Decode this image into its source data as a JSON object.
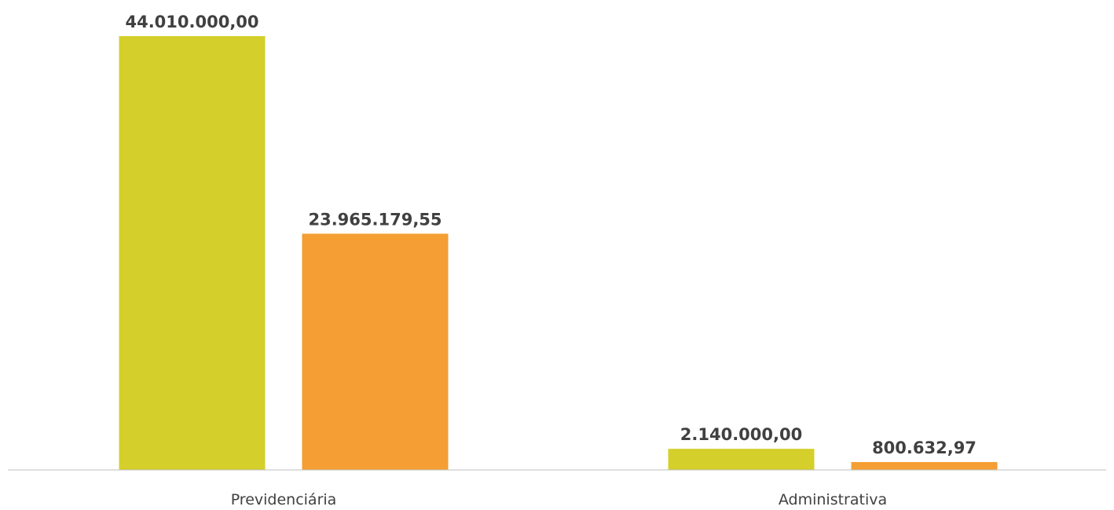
{
  "chart_data": {
    "type": "bar",
    "categories": [
      "Previdenciária",
      "Administrativa"
    ],
    "series": [
      {
        "values": [
          44010000.0,
          2140000.0
        ],
        "labels": [
          "44.010.000,00",
          "2.140.000,00"
        ],
        "color": "#d4cf2a"
      },
      {
        "values": [
          23965179.55,
          800632.97
        ],
        "labels": [
          "23.965.179,55",
          "800.632,97"
        ],
        "color": "#f49e33"
      }
    ],
    "ylim": [
      0,
      44010000
    ],
    "grid": false,
    "legend": "none",
    "axis_color": "#bfbfbf"
  }
}
